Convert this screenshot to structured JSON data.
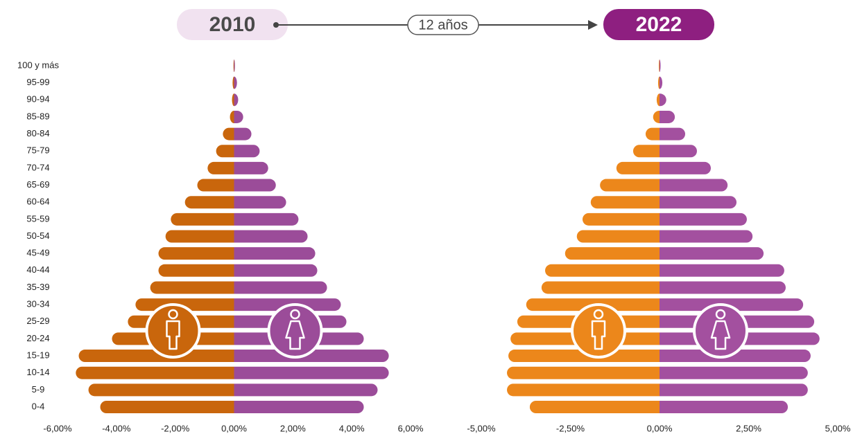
{
  "timeline_label": "12 años",
  "chart_data": [
    {
      "type": "pyramid",
      "title": "2010",
      "categories": [
        "100 y más",
        "95-99",
        "90-94",
        "85-89",
        "80-84",
        "75-79",
        "70-74",
        "65-69",
        "60-64",
        "55-59",
        "50-54",
        "45-49",
        "40-44",
        "35-39",
        "30-34",
        "25-29",
        "20-24",
        "15-19",
        "10-14",
        "5-9",
        "0-4"
      ],
      "series": [
        {
          "color": "#c9660c",
          "values": [
            -0.02,
            -0.05,
            -0.07,
            -0.14,
            -0.38,
            -0.61,
            -0.9,
            -1.25,
            -1.67,
            -2.15,
            -2.33,
            -2.57,
            -2.57,
            -2.85,
            -3.35,
            -3.61,
            -4.15,
            -5.28,
            -5.38,
            -4.95,
            -4.55
          ]
        },
        {
          "color": "#9b4c99",
          "values": [
            0.03,
            0.1,
            0.14,
            0.31,
            0.59,
            0.87,
            1.16,
            1.42,
            1.77,
            2.19,
            2.5,
            2.76,
            2.83,
            3.16,
            3.63,
            3.82,
            4.41,
            5.26,
            5.26,
            4.88,
            4.41
          ]
        }
      ],
      "xlim": [
        -6,
        6
      ],
      "xticks": [
        {
          "value": -6,
          "label": "-6,00%"
        },
        {
          "value": -4,
          "label": "-4,00%"
        },
        {
          "value": -2,
          "label": "-2,00%"
        },
        {
          "value": 0,
          "label": "0,00%"
        },
        {
          "value": 2,
          "label": "2,00%"
        },
        {
          "value": 4,
          "label": "4,00%"
        },
        {
          "value": 6,
          "label": "6,00%"
        }
      ]
    },
    {
      "type": "pyramid",
      "title": "2022",
      "series": [
        {
          "color": "#ec871b",
          "values": [
            -0.02,
            -0.04,
            -0.08,
            -0.18,
            -0.39,
            -0.74,
            -1.21,
            -1.67,
            -1.93,
            -2.16,
            -2.32,
            -2.65,
            -3.21,
            -3.31,
            -3.74,
            -3.99,
            -4.18,
            -4.24,
            -4.28,
            -4.28,
            -3.64
          ]
        },
        {
          "color": "#a3509f",
          "values": [
            0.03,
            0.08,
            0.19,
            0.43,
            0.72,
            1.05,
            1.44,
            1.91,
            2.16,
            2.45,
            2.61,
            2.92,
            3.5,
            3.54,
            4.03,
            4.34,
            4.49,
            4.24,
            4.16,
            4.16,
            3.6
          ]
        }
      ],
      "xlim": [
        -5,
        5
      ],
      "xticks": [
        {
          "value": -5,
          "label": "-5,00%"
        },
        {
          "value": -2.5,
          "label": "-2,50%"
        },
        {
          "value": 0,
          "label": "0,00%"
        },
        {
          "value": 2.5,
          "label": "2,50%"
        },
        {
          "value": 5,
          "label": "5,00%"
        }
      ]
    }
  ]
}
